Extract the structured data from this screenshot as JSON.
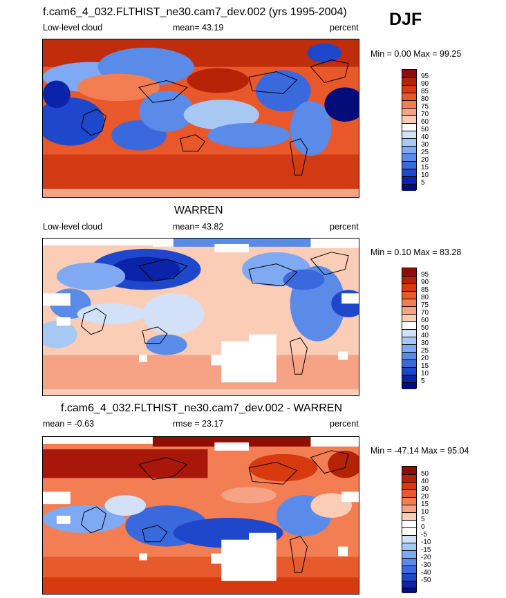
{
  "season": "DJF",
  "panels": [
    {
      "title": "f.cam6_4_032.FLTHIST_ne30.cam7_dev.002 (yrs 1995-2004)",
      "left_label": "Low-level cloud",
      "mid_label": "mean=  43.19",
      "right_label": "percent",
      "minmax": "Min =   0.00 Max =  99.25",
      "colorbar": {
        "labels": [
          "95",
          "90",
          "85",
          "80",
          "75",
          "70",
          "60",
          "50",
          "40",
          "30",
          "25",
          "20",
          "15",
          "10",
          "5"
        ],
        "colors": [
          "#8f0d05",
          "#b52206",
          "#d73a0f",
          "#e75a2c",
          "#f37e53",
          "#f6a285",
          "#fbcdb6",
          "#ffffff",
          "#d2e1f7",
          "#a8c8f4",
          "#7fa9f2",
          "#5b8be8",
          "#3a68dd",
          "#1f47cc",
          "#0a23a8",
          "#040c7a"
        ]
      }
    },
    {
      "title": "WARREN",
      "left_label": "Low-level cloud",
      "mid_label": "mean=  43.82",
      "right_label": "percent",
      "minmax": "Min =   0.10 Max =  83.28",
      "colorbar": {
        "labels": [
          "95",
          "90",
          "85",
          "80",
          "75",
          "70",
          "60",
          "50",
          "40",
          "30",
          "25",
          "20",
          "15",
          "10",
          "5"
        ],
        "colors": [
          "#8f0d05",
          "#b52206",
          "#d73a0f",
          "#e75a2c",
          "#f37e53",
          "#f6a285",
          "#fbcdb6",
          "#ffffff",
          "#d2e1f7",
          "#a8c8f4",
          "#7fa9f2",
          "#5b8be8",
          "#3a68dd",
          "#1f47cc",
          "#0a23a8",
          "#040c7a"
        ]
      }
    },
    {
      "title": "f.cam6_4_032.FLTHIST_ne30.cam7_dev.002 - WARREN",
      "left_label": "mean =  -0.63",
      "mid_label": "rmse =  23.17",
      "right_label": "percent",
      "minmax": "Min = -47.14 Max =  95.04",
      "colorbar": {
        "labels": [
          "50",
          "40",
          "30",
          "20",
          "15",
          "10",
          "5",
          "0",
          "-5",
          "-10",
          "-15",
          "-20",
          "-30",
          "-40",
          "-50"
        ],
        "colors": [
          "#8f0d05",
          "#b52206",
          "#d73a0f",
          "#e75a2c",
          "#f37e53",
          "#f6a285",
          "#fbcdb6",
          "#ffffff",
          "#ffffff",
          "#d2e1f7",
          "#a8c8f4",
          "#7fa9f2",
          "#5b8be8",
          "#3a68dd",
          "#1f47cc",
          "#0a23a8",
          "#040c7a"
        ]
      }
    }
  ]
}
